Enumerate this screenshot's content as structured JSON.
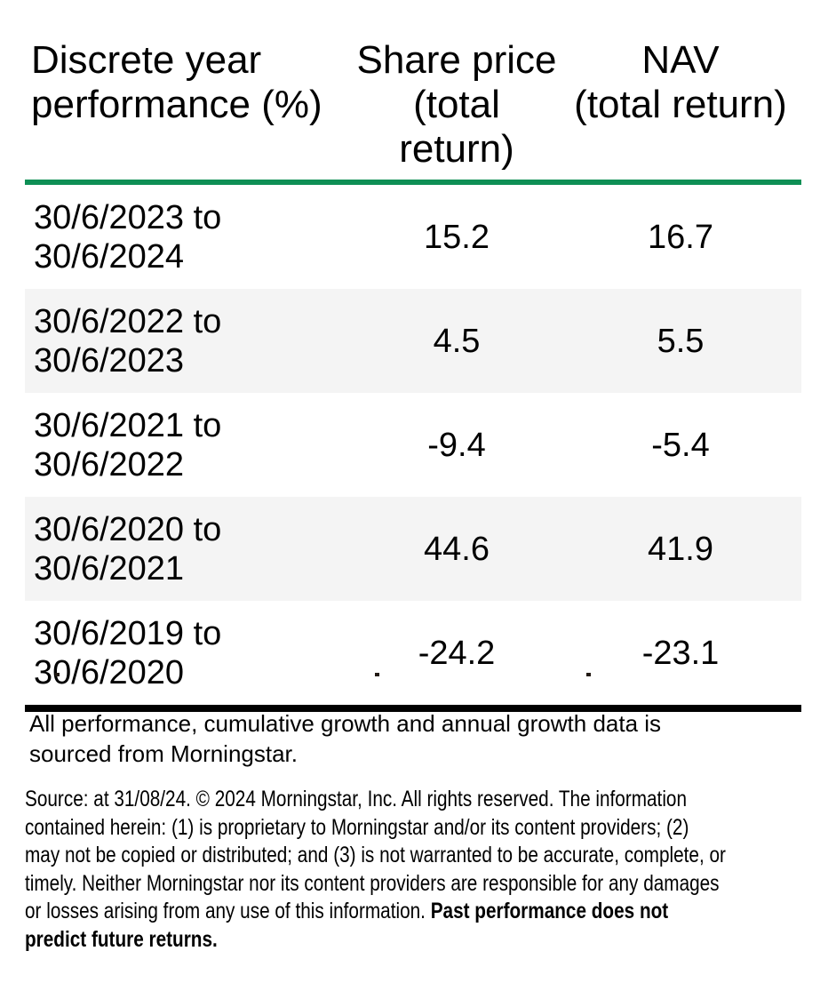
{
  "table": {
    "header": {
      "col1_line1": "Discrete year",
      "col1_line2": "performance (%)",
      "col2_line1": "Share price",
      "col2_line2": "(total return)",
      "col3_line1": "NAV",
      "col3_line2": "(total return)"
    },
    "rows": [
      {
        "period_line1": "30/6/2023 to",
        "period_line2": "30/6/2024",
        "share_price": "15.2",
        "nav": "16.7"
      },
      {
        "period_line1": "30/6/2022 to",
        "period_line2": "30/6/2023",
        "share_price": "4.5",
        "nav": "5.5"
      },
      {
        "period_line1": "30/6/2021 to",
        "period_line2": "30/6/2022",
        "share_price": "-9.4",
        "nav": "-5.4"
      },
      {
        "period_line1": "30/6/2020 to",
        "period_line2": "30/6/2021",
        "share_price": "44.6",
        "nav": "41.9"
      },
      {
        "period_line1": "30/6/2019 to",
        "period_line2": "30/6/2020",
        "share_price": "-24.2",
        "nav": "-23.1"
      }
    ]
  },
  "chart_data": {
    "type": "table",
    "title": "Discrete year performance (%)",
    "columns": [
      "Discrete year performance (%)",
      "Share price (total return)",
      "NAV (total return)"
    ],
    "rows": [
      [
        "30/6/2023 to 30/6/2024",
        15.2,
        16.7
      ],
      [
        "30/6/2022 to 30/6/2023",
        4.5,
        5.5
      ],
      [
        "30/6/2021 to 30/6/2022",
        -9.4,
        -5.4
      ],
      [
        "30/6/2020 to 30/6/2021",
        44.6,
        41.9
      ],
      [
        "30/6/2019 to 30/6/2020",
        -24.2,
        -23.1
      ]
    ]
  },
  "notes": {
    "attribution_line1": "All performance, cumulative growth and annual growth data is",
    "attribution_line2": "sourced from Morningstar.",
    "disclaimer_lines": [
      {
        "normal": "Source: at 31/08/24. © 2024 Morningstar, Inc. All rights reserved. The information",
        "bold": ""
      },
      {
        "normal": "contained herein: (1) is proprietary to Morningstar and/or its content providers; (2)",
        "bold": ""
      },
      {
        "normal": "may not be copied or distributed; and (3) is not warranted to be accurate, complete, or",
        "bold": ""
      },
      {
        "normal": "timely. Neither Morningstar nor its content providers are responsible for any damages",
        "bold": ""
      },
      {
        "normal": "or losses arising from any use of this information. ",
        "bold": "Past performance does not"
      },
      {
        "normal": "",
        "bold": "predict future returns."
      }
    ]
  },
  "colors": {
    "accent_green": "#0E8F55",
    "row_stripe": "#F4F4F4",
    "rule_black": "#000000",
    "text": "#000000"
  }
}
